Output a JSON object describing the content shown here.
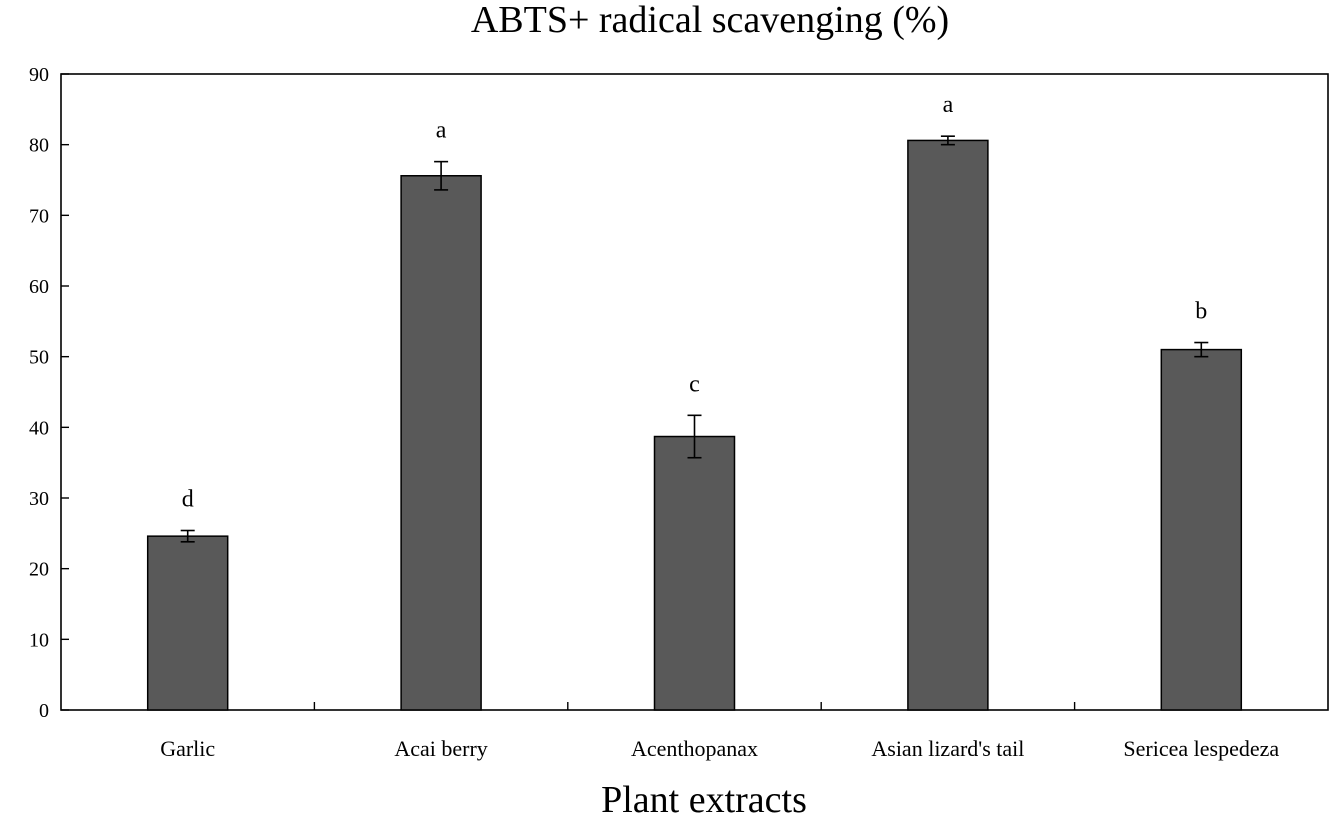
{
  "chart_data": {
    "type": "bar",
    "title": "ABTS+ radical scavenging (%)",
    "xlabel": "Plant extracts",
    "ylabel": "",
    "ylim": [
      0,
      90
    ],
    "yticks": [
      0,
      10,
      20,
      30,
      40,
      50,
      60,
      70,
      80,
      90
    ],
    "grid": false,
    "categories": [
      "Garlic",
      "Acai berry",
      "Acenthopanax",
      "Asian lizard's tail",
      "Sericea lespedeza"
    ],
    "values": [
      24.6,
      75.6,
      38.7,
      80.6,
      51.0
    ],
    "errors": [
      0.8,
      2.0,
      3.0,
      0.6,
      1.0
    ],
    "significance_labels": [
      "d",
      "a",
      "c",
      "a",
      "b"
    ],
    "bar_color": "#595959"
  }
}
